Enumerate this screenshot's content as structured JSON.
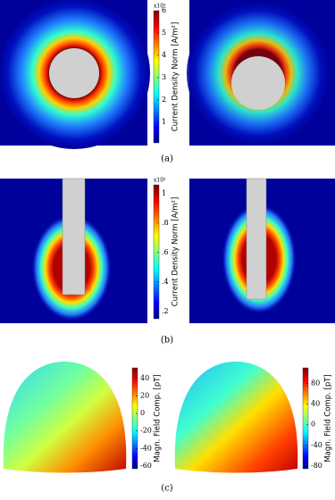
{
  "panels": [
    {
      "caption": "(a)",
      "colorbars": [
        {
          "label": "Current Density Norm [A/m²]",
          "multiplier": "x10³",
          "lim": [
            0.07,
            6
          ],
          "ticks": [
            1,
            2,
            3,
            4,
            5,
            6
          ]
        }
      ]
    },
    {
      "caption": "(b)",
      "colorbars": [
        {
          "label": "Current Density Norm [A/m²]",
          "multiplier": "x10³",
          "lim": [
            0.15,
            1.06
          ],
          "ticks": [
            {
              "value": 0.2,
              "label": ".2"
            },
            {
              "value": 0.4,
              "label": ".4"
            },
            {
              "value": 0.6,
              "label": ".6"
            },
            {
              "value": 0.8,
              "label": ".8"
            },
            1
          ]
        }
      ]
    },
    {
      "caption": "(c)",
      "colorbars": [
        {
          "label": "Magn. Field Comp. [pT]",
          "lim": [
            -63,
            52
          ],
          "ticks": [
            -60,
            -40,
            -20,
            0,
            20,
            40
          ]
        },
        {
          "label": "Magn. Field Comp. [pT]",
          "lim": [
            -85,
            110
          ],
          "ticks": [
            -80,
            -40,
            0,
            40,
            80
          ]
        }
      ]
    }
  ]
}
